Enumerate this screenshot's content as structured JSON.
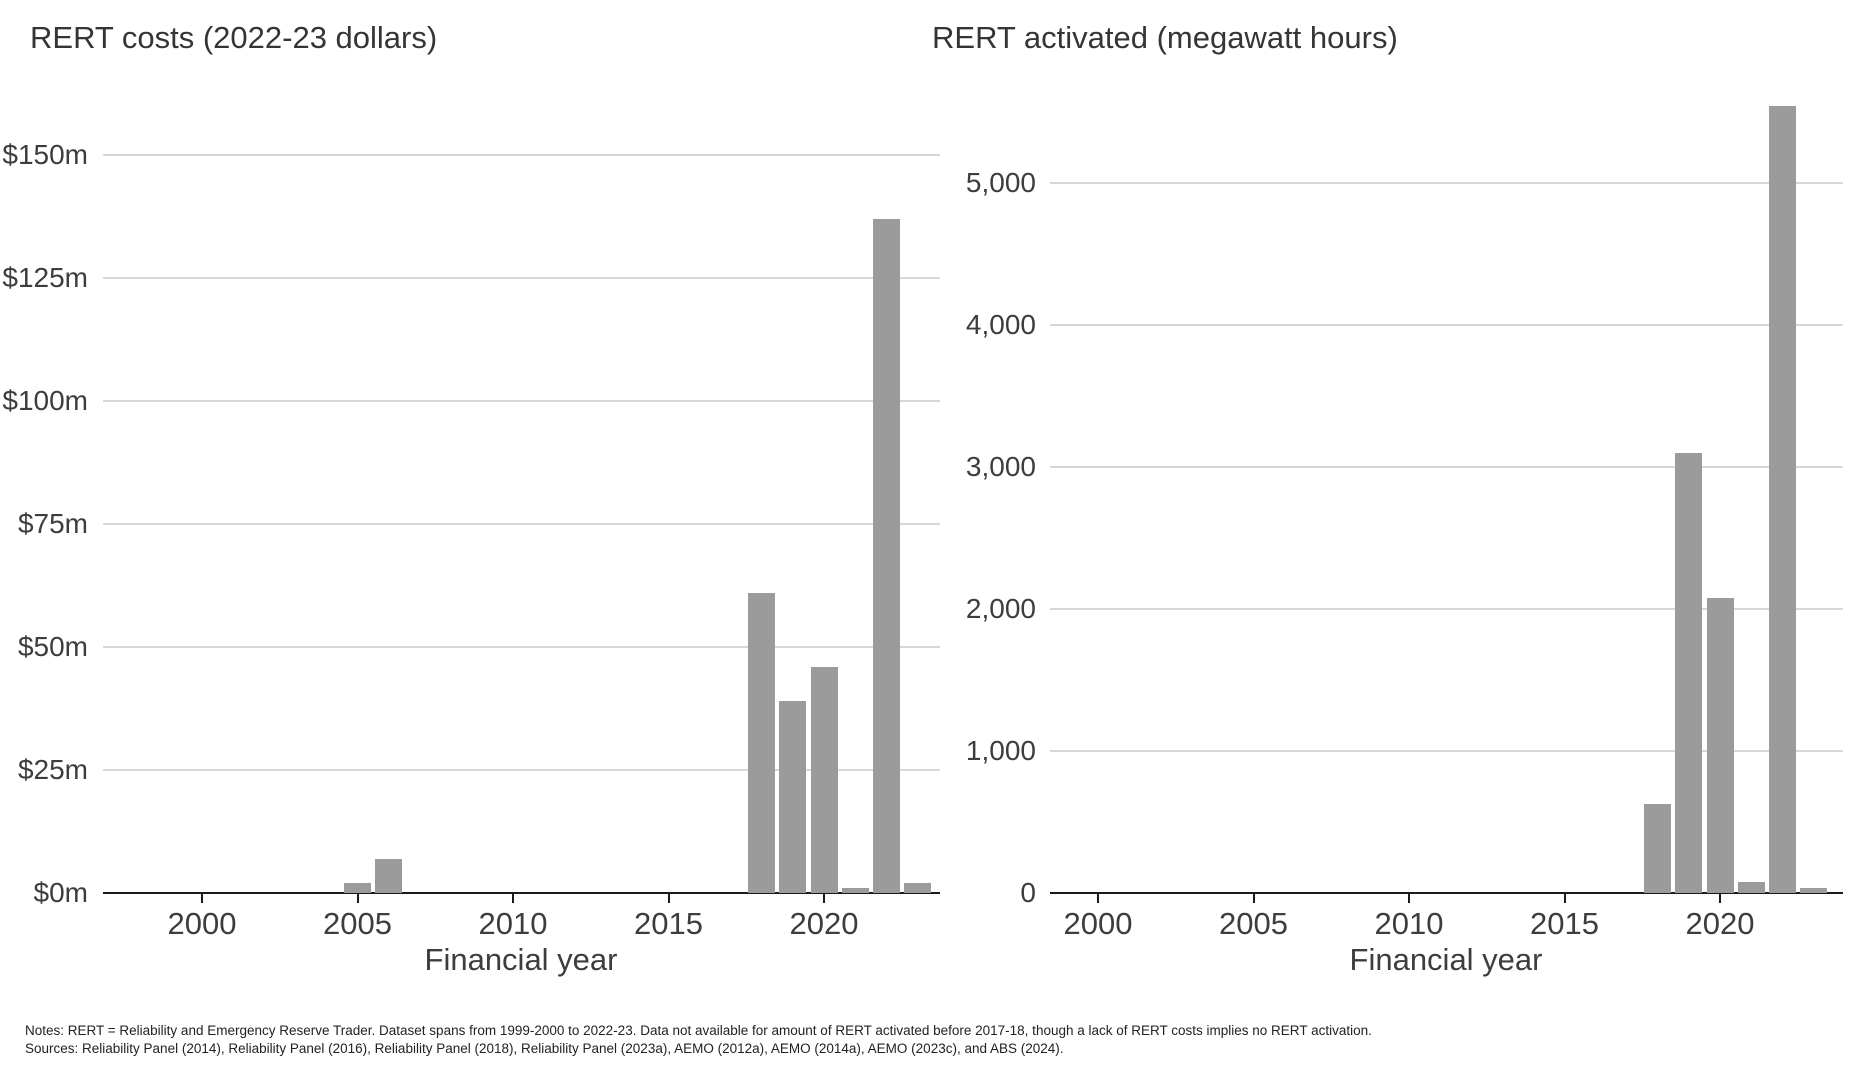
{
  "colors": {
    "bar": "#9b9b9b",
    "gridline": "#d8d8d8",
    "axis": "#1a1a1a",
    "text": "#3d3d3d",
    "background": "#ffffff"
  },
  "chart_data": [
    {
      "type": "bar",
      "title": "RERT costs (2022-23 dollars)",
      "xlabel": "Financial year",
      "ylabel": "",
      "grid": true,
      "legend": false,
      "xlim": [
        1996.8,
        2023.7
      ],
      "ylim": [
        0,
        160
      ],
      "x_ticks": [
        {
          "year": 2000,
          "label": "2000"
        },
        {
          "year": 2005,
          "label": "2005"
        },
        {
          "year": 2010,
          "label": "2010"
        },
        {
          "year": 2015,
          "label": "2015"
        },
        {
          "year": 2020,
          "label": "2020"
        }
      ],
      "y_ticks": [
        {
          "value": 0,
          "label": "$0m"
        },
        {
          "value": 25,
          "label": "$25m"
        },
        {
          "value": 50,
          "label": "$50m"
        },
        {
          "value": 75,
          "label": "$75m"
        },
        {
          "value": 100,
          "label": "$100m"
        },
        {
          "value": 125,
          "label": "$125m"
        },
        {
          "value": 150,
          "label": "$150m"
        }
      ],
      "bars": [
        {
          "year": 2005,
          "value": 2
        },
        {
          "year": 2006,
          "value": 7
        },
        {
          "year": 2018,
          "value": 61
        },
        {
          "year": 2019,
          "value": 39
        },
        {
          "year": 2020,
          "value": 46
        },
        {
          "year": 2021,
          "value": 1
        },
        {
          "year": 2022,
          "value": 137
        },
        {
          "year": 2023,
          "value": 2
        }
      ]
    },
    {
      "type": "bar",
      "title": "RERT activated (megawatt hours)",
      "xlabel": "Financial year",
      "ylabel": "",
      "grid": true,
      "legend": false,
      "xlim": [
        1998.5,
        2024.0
      ],
      "ylim": [
        0,
        5600
      ],
      "x_ticks": [
        {
          "year": 2000,
          "label": "2000"
        },
        {
          "year": 2005,
          "label": "2005"
        },
        {
          "year": 2010,
          "label": "2010"
        },
        {
          "year": 2015,
          "label": "2015"
        },
        {
          "year": 2020,
          "label": "2020"
        }
      ],
      "y_ticks": [
        {
          "value": 0,
          "label": "0"
        },
        {
          "value": 1000,
          "label": "1,000"
        },
        {
          "value": 2000,
          "label": "2,000"
        },
        {
          "value": 3000,
          "label": "3,000"
        },
        {
          "value": 4000,
          "label": "4,000"
        },
        {
          "value": 5000,
          "label": "5,000"
        }
      ],
      "bars": [
        {
          "year": 2018,
          "value": 630
        },
        {
          "year": 2019,
          "value": 3100
        },
        {
          "year": 2020,
          "value": 2080
        },
        {
          "year": 2021,
          "value": 75
        },
        {
          "year": 2022,
          "value": 5540
        },
        {
          "year": 2023,
          "value": 35
        }
      ]
    }
  ],
  "notes": {
    "line1": "Notes: RERT = Reliability and Emergency Reserve Trader. Dataset spans from 1999-2000 to 2022-23. Data not available for amount of RERT activated before 2017-18, though a lack of RERT costs implies no RERT activation.",
    "line2": "Sources: Reliability Panel (2014), Reliability Panel (2016), Reliability Panel (2018), Reliability Panel (2023a), AEMO (2012a), AEMO (2014a), AEMO (2023c), and ABS (2024)."
  }
}
